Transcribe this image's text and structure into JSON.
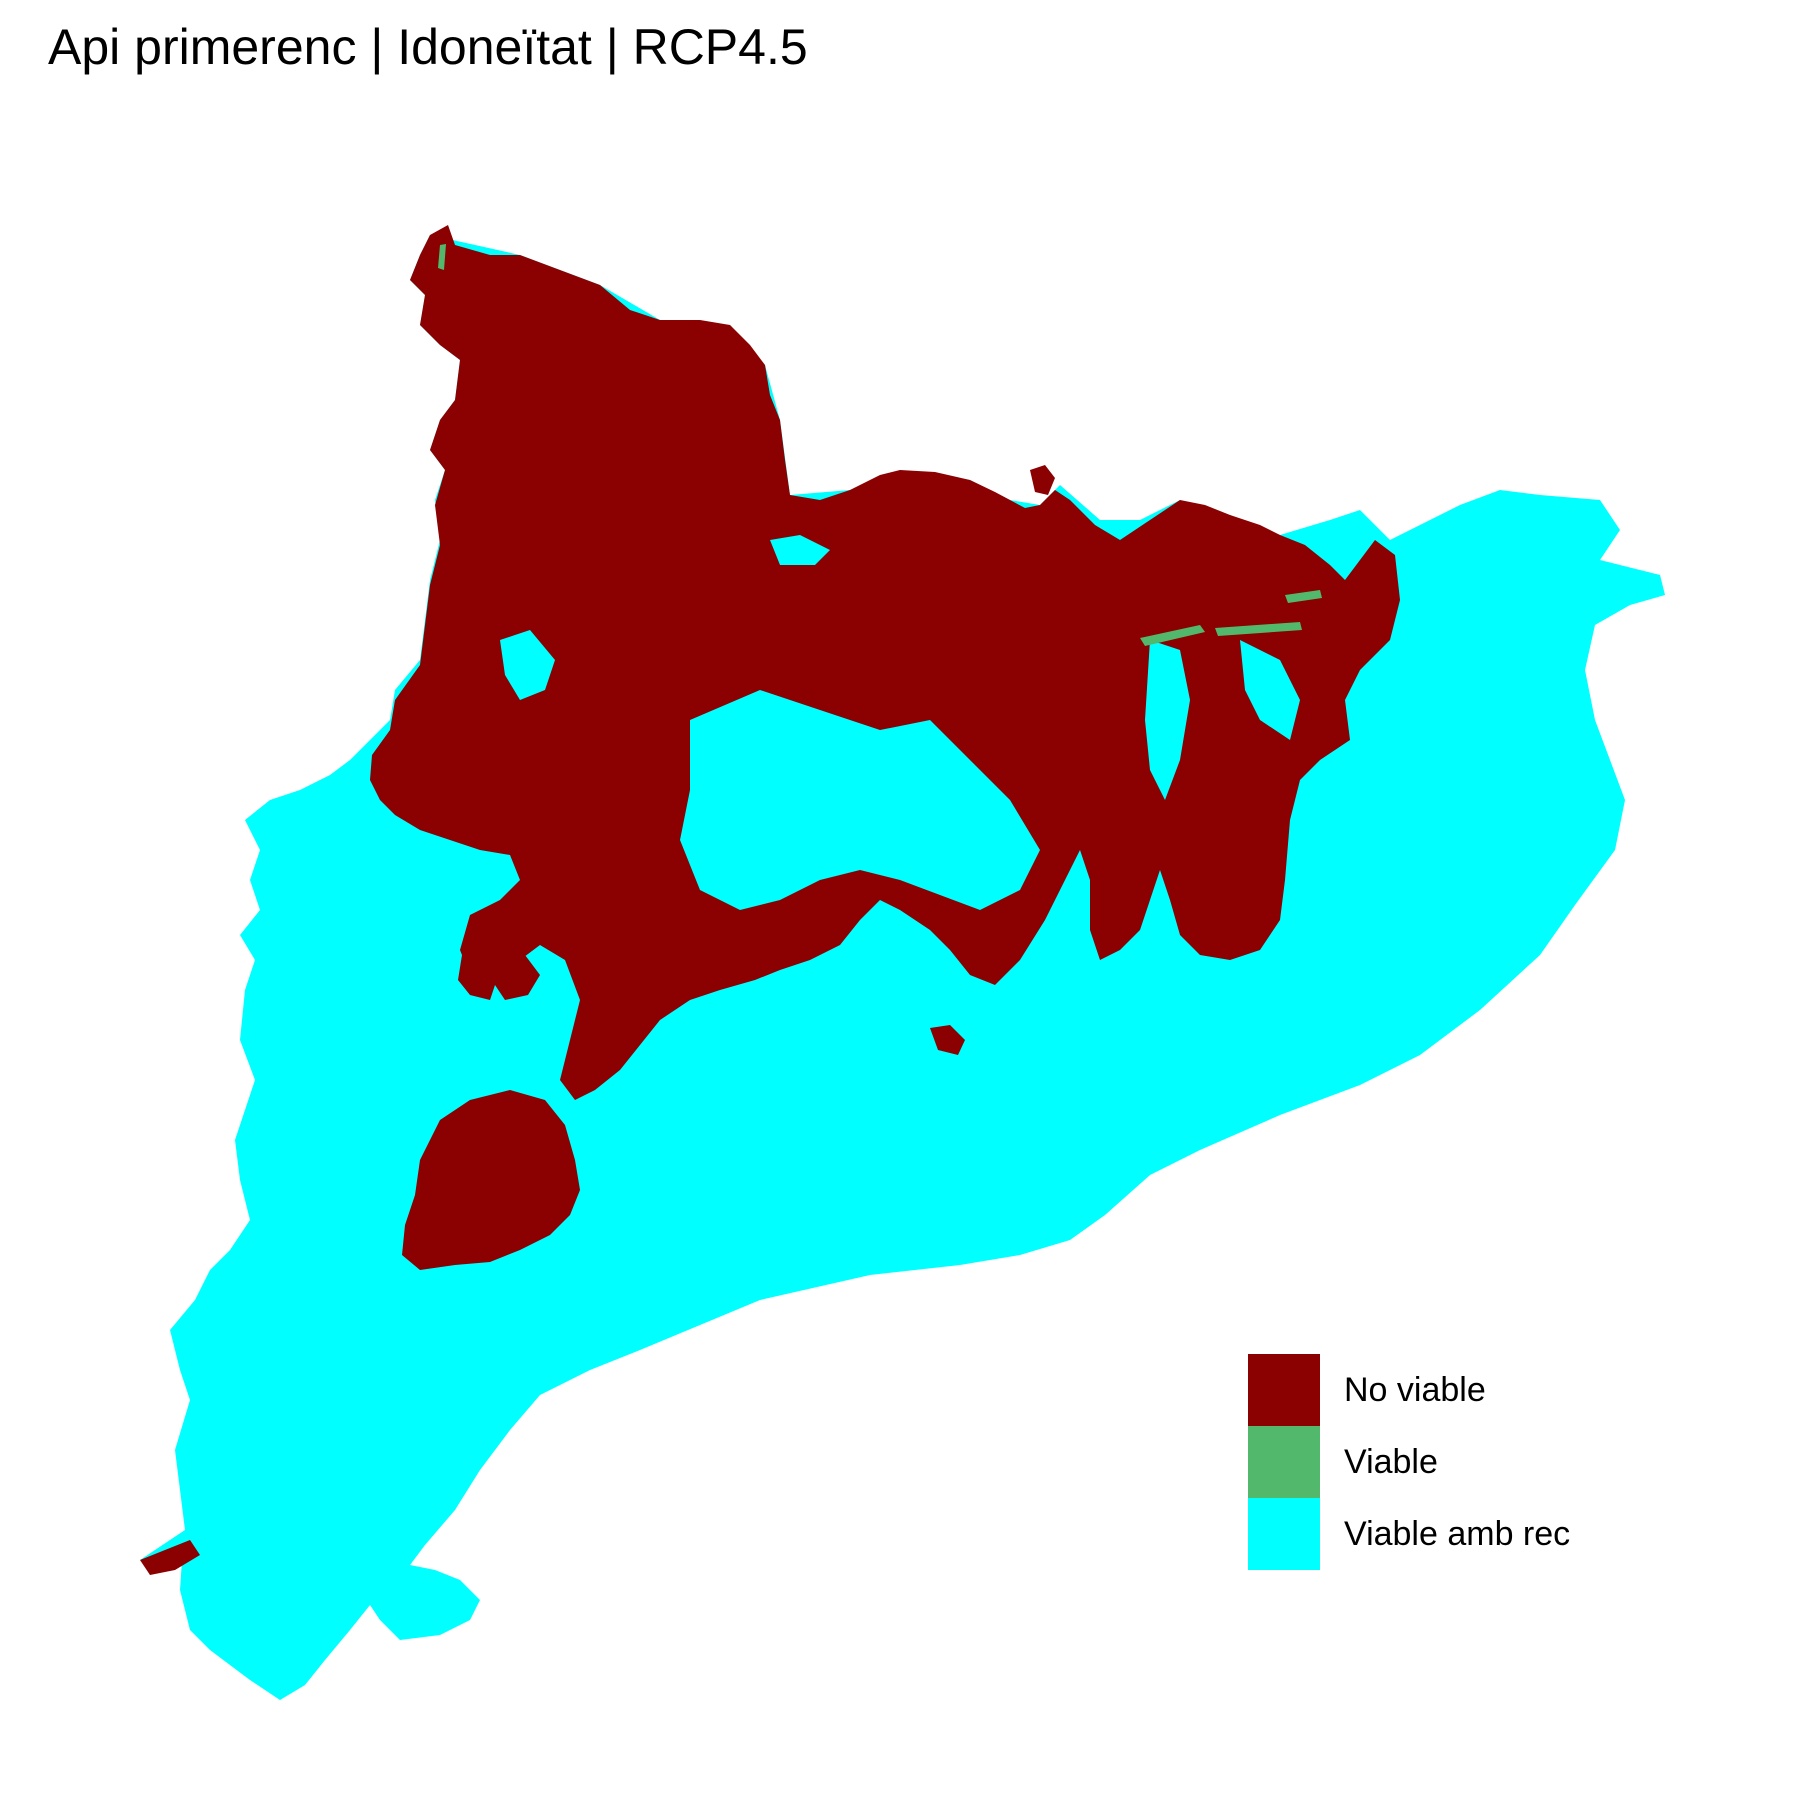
{
  "title": "Api primerenc | Idoneïtat | RCP4.5",
  "legend": {
    "items": [
      {
        "label": "No viable",
        "color": "#8B0000"
      },
      {
        "label": "Viable",
        "color": "#52B96C"
      },
      {
        "label": "Viable amb rec",
        "color": "#00FFFF"
      }
    ]
  },
  "colors": {
    "background": "#FFFFFF",
    "no_viable": "#8B0000",
    "viable": "#52B96C",
    "viable_amb_rec": "#00FFFF"
  }
}
